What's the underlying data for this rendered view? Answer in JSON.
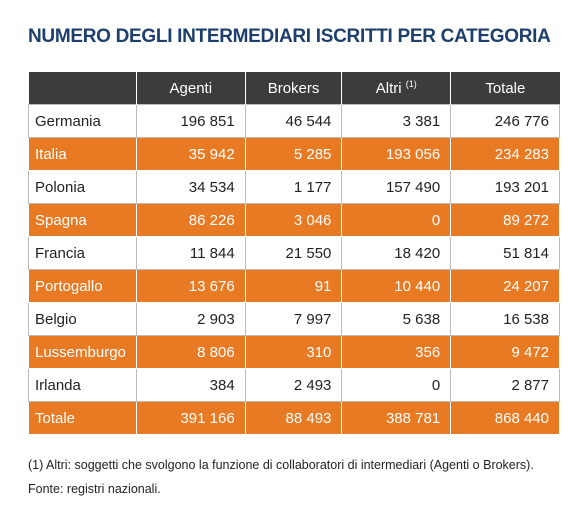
{
  "title": "NUMERO DEGLI INTERMEDIARI ISCRITTI PER CATEGORIA",
  "table": {
    "columns": [
      "Agenti",
      "Brokers",
      "Altri",
      "Totale"
    ],
    "altri_note": "(1)",
    "rows": [
      [
        "Germania",
        "196 851",
        "46 544",
        "3 381",
        "246 776"
      ],
      [
        "Italia",
        "35 942",
        "5 285",
        "193 056",
        "234 283"
      ],
      [
        "Polonia",
        "34 534",
        "1 177",
        "157 490",
        "193 201"
      ],
      [
        "Spagna",
        "86 226",
        "3 046",
        "0",
        "89 272"
      ],
      [
        "Francia",
        "11 844",
        "21 550",
        "18 420",
        "51 814"
      ],
      [
        "Portogallo",
        "13 676",
        "91",
        "10 440",
        "24 207"
      ],
      [
        "Belgio",
        "2 903",
        "7 997",
        "5 638",
        "16 538"
      ],
      [
        "Lussemburgo",
        "8 806",
        "310",
        "356",
        "9 472"
      ],
      [
        "Irlanda",
        "384",
        "2 493",
        "0",
        "2 877"
      ],
      [
        "Totale",
        "391 166",
        "88 493",
        "388 781",
        "868 440"
      ]
    ]
  },
  "footnotes": [
    "(1) Altri: soggetti che svolgono la funzione di collaboratori di intermediari (Agenti o Brokers).",
    "Fonte: registri nazionali."
  ]
}
